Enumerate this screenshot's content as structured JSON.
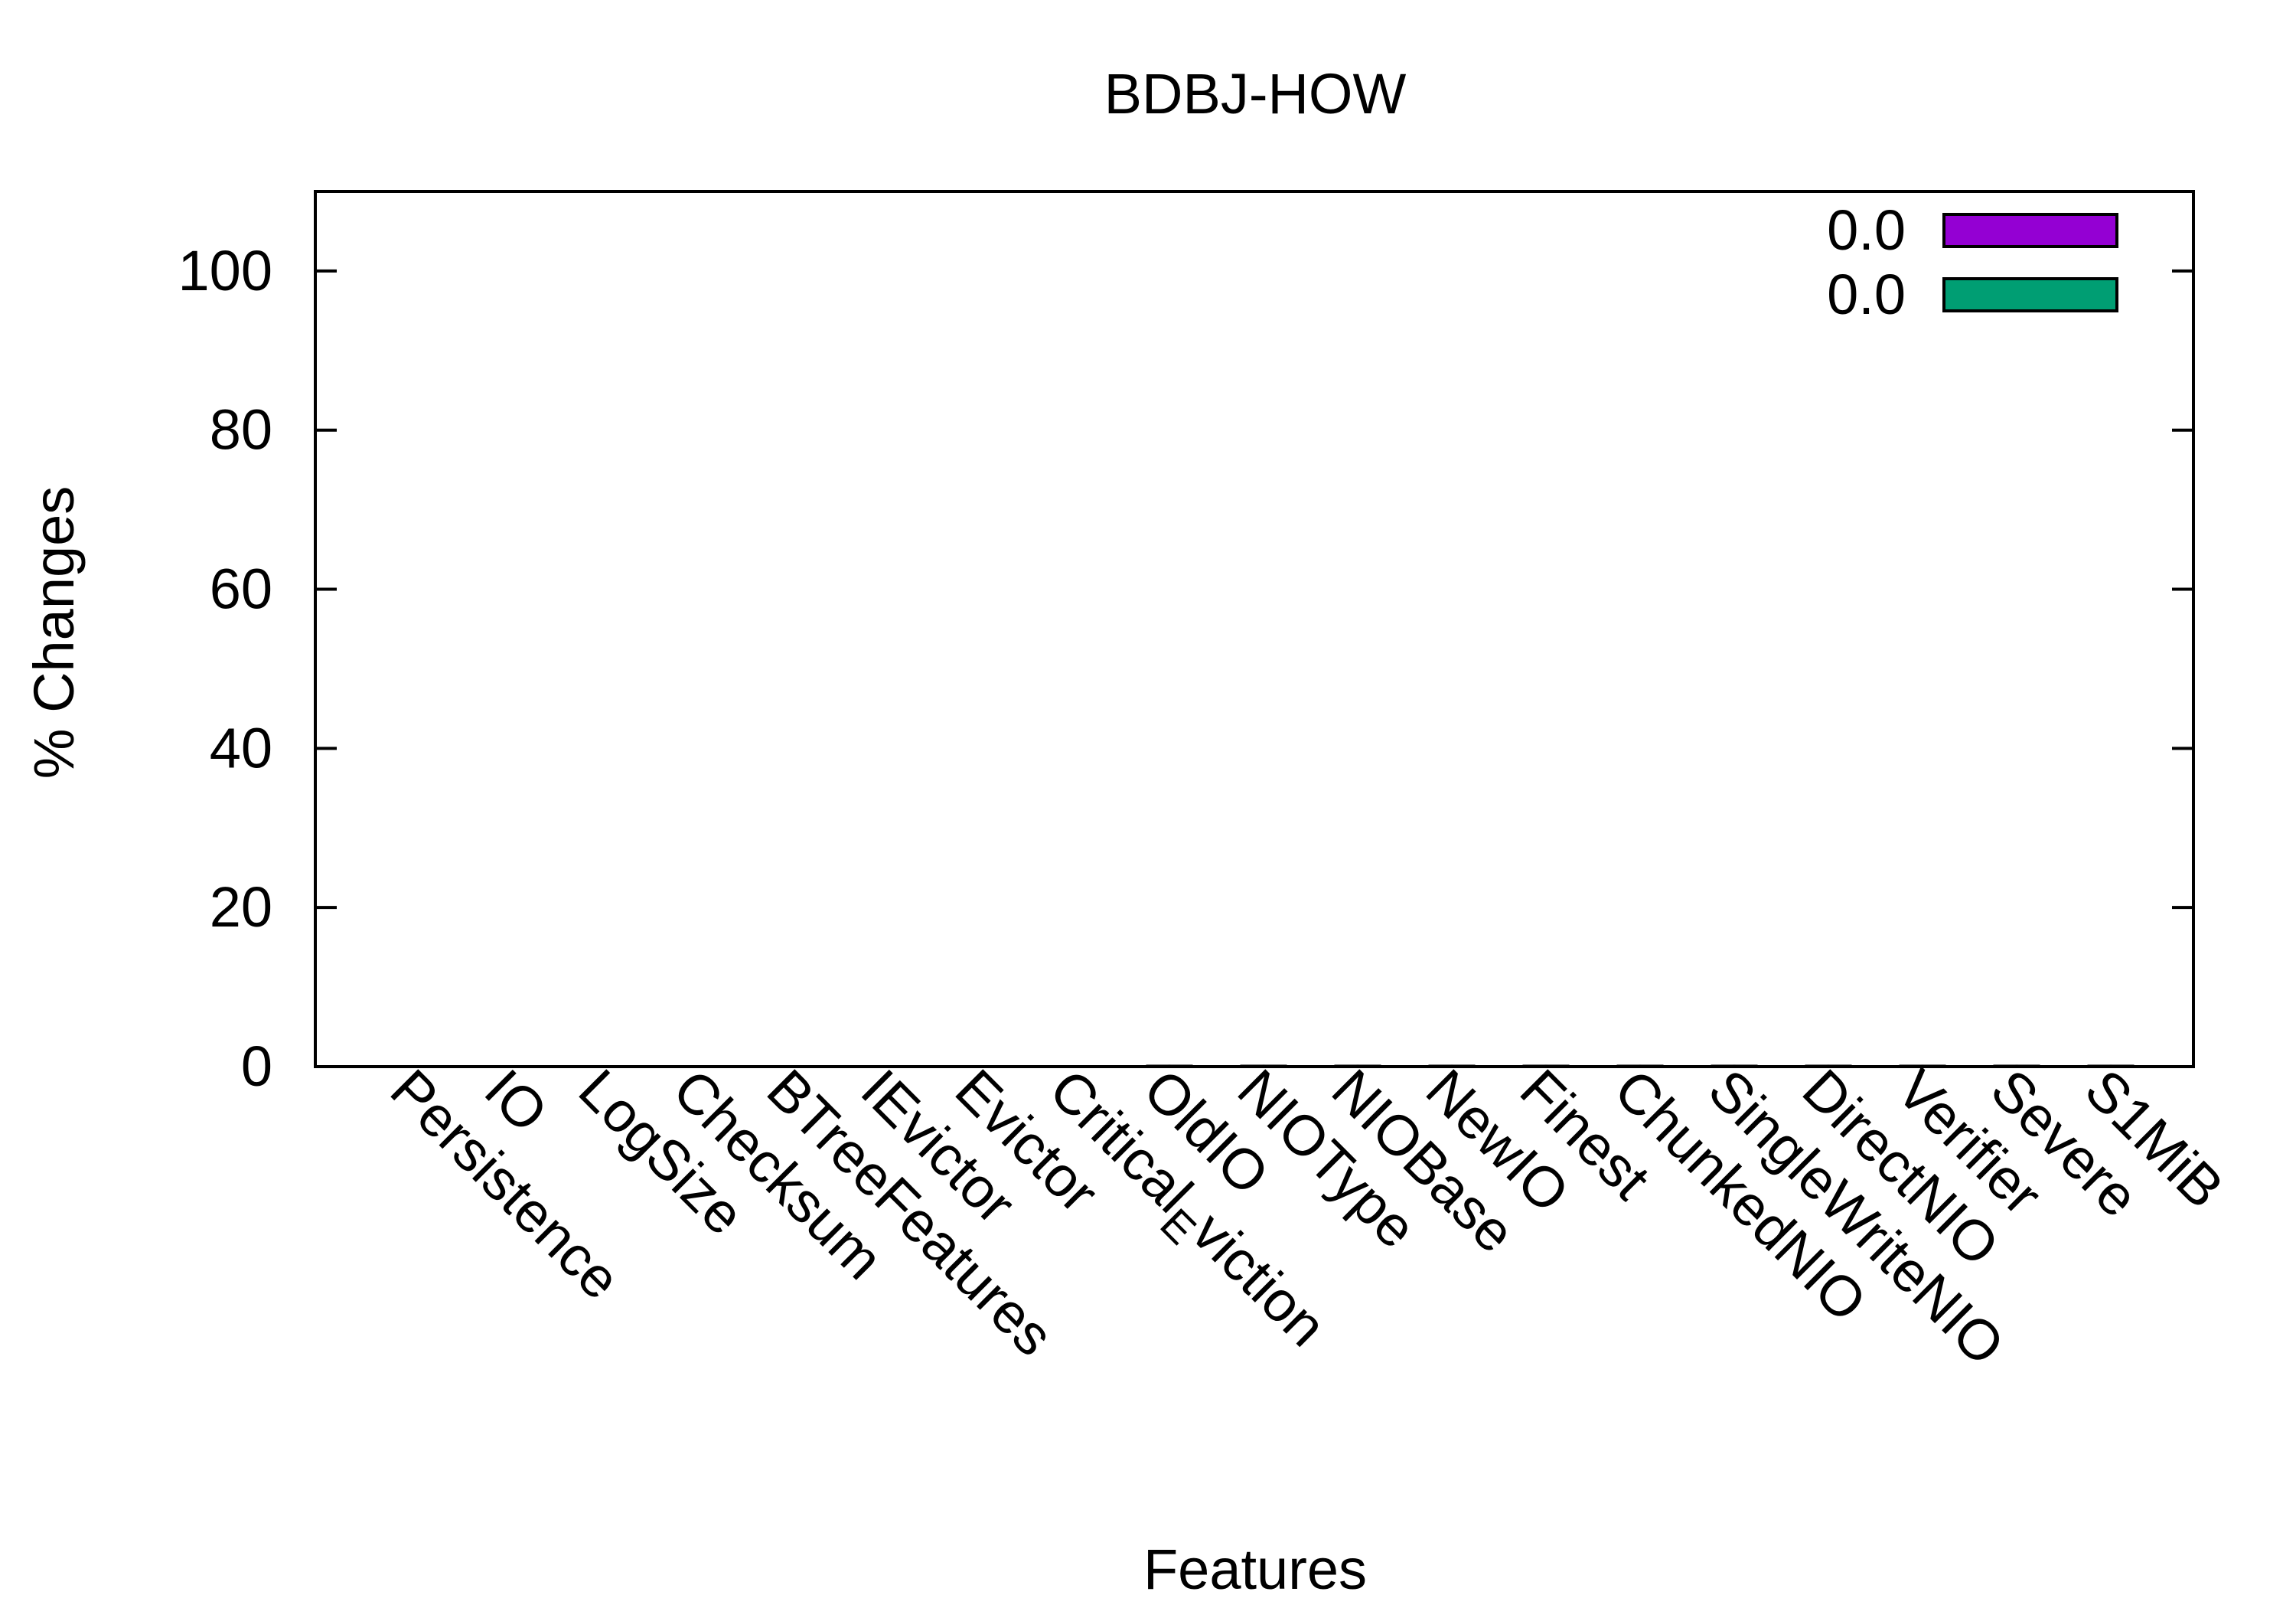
{
  "chart_data": {
    "type": "bar",
    "title": "BDBJ-HOW",
    "xlabel": "Features",
    "ylabel": "% Changes",
    "ylim": [
      0,
      110
    ],
    "yticks": [
      0,
      20,
      40,
      60,
      80,
      100
    ],
    "grid": false,
    "legend_position": "top-right",
    "categories": [
      "Persistence",
      "IO",
      "LogSize",
      "Checksum",
      "BTreeFeatures",
      "IEvictor",
      "Evictor",
      "Critical_Eviction",
      "OldIO",
      "NIOType",
      "NIOBase",
      "NewIO",
      "Finest",
      "ChunkedNIO",
      "SingleWriteNIO",
      "DirectNIO",
      "Verifier",
      "Severe",
      "S1MiB"
    ],
    "series": [
      {
        "name": "0.0",
        "color": "#9400d3",
        "values": [
          0,
          0,
          0,
          0,
          0,
          0,
          0,
          0,
          0.1,
          0.1,
          0.1,
          0.1,
          0.1,
          0.1,
          0.1,
          0.1,
          0.1,
          0.1,
          0.1
        ]
      },
      {
        "name": "0.0",
        "color": "#009e73",
        "values": [
          0,
          0,
          0,
          0,
          0,
          0,
          0,
          0,
          0.1,
          0.1,
          0.1,
          0.1,
          0.1,
          0.1,
          0.1,
          0.1,
          0.1,
          0.1,
          0.1
        ]
      }
    ]
  }
}
